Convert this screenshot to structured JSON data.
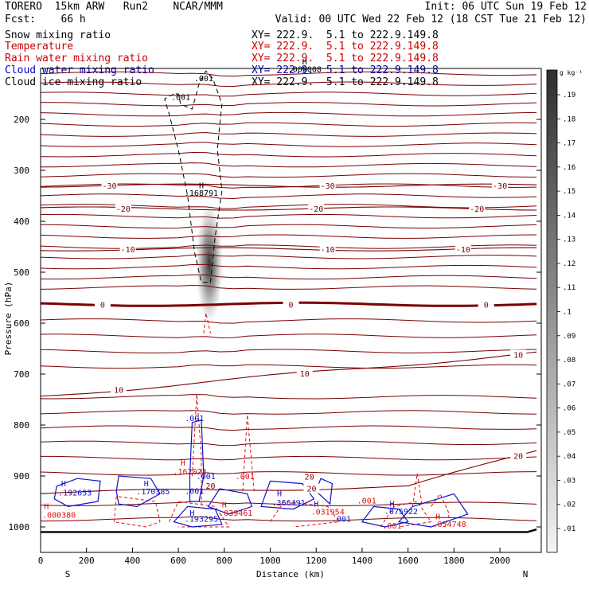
{
  "header": {
    "line1_left": "TORERO  15km ARW   Run2    NCAR/MMM",
    "line1_right": "Init: 06 UTC Sun 19 Feb 12",
    "line2_left": "Fcst:    66 h",
    "line2_right": "Valid: 00 UTC Wed 22 Feb 12 (18 CST Tue 21 Feb 12)",
    "fields": [
      {
        "name": "Snow mixing ratio",
        "xy": "XY= 222.9.  5.1 to 222.9.149.8",
        "color": "#000000"
      },
      {
        "name": "Temperature",
        "xy": "XY= 222.9.  5.1 to 222.9.149.8",
        "color": "#cc0000"
      },
      {
        "name": "Rain water mixing ratio",
        "xy": "XY= 222.9.  5.1 to 222.9.149.8",
        "color": "#cc0000"
      },
      {
        "name": "Cloud water mixing ratio",
        "xy": "XY= 222.9.  5.1 to 222.9.149.8",
        "color": "#0000cc"
      },
      {
        "name": "Cloud ice mixing ratio",
        "xy": "XY= 222.9.  5.1 to 222.9.149.8",
        "color": "#000000"
      }
    ]
  },
  "colors": {
    "temperature": "#7a0000",
    "rain": "#dd1111",
    "cloud_water": "#1111cc",
    "cloud_ice": "#000000",
    "freezing": "#7a0000"
  },
  "chart_data": {
    "type": "cross-section",
    "xlabel": "Distance (km)",
    "ylabel": "Pressure (hPa)",
    "xlim": [
      0,
      2180
    ],
    "ylim": [
      1050,
      100
    ],
    "x_ticks": [
      0,
      200,
      400,
      600,
      800,
      1000,
      1200,
      1400,
      1600,
      1800,
      2000
    ],
    "y_ticks": [
      200,
      300,
      400,
      500,
      600,
      700,
      800,
      900,
      1000
    ],
    "left_end_label": "S",
    "right_end_label": "N",
    "colorbar": {
      "unit": "g kg⁻¹",
      "ticks": [
        ".01",
        ".02",
        ".03",
        ".04",
        ".05",
        ".06",
        ".07",
        ".08",
        ".09",
        ".1",
        ".11",
        ".12",
        ".13",
        ".14",
        ".15",
        ".16",
        ".17",
        ".18",
        ".19"
      ]
    },
    "temperature_contours": [
      {
        "label": "-30",
        "p": 330,
        "label_x": [
          300,
          1250,
          2000
        ]
      },
      {
        "label": "-20",
        "p": 375,
        "label_x": [
          360,
          1200,
          1900
        ]
      },
      {
        "label": "-10",
        "p": 455,
        "label_x": [
          380,
          1250,
          1840
        ]
      },
      {
        "label": "0",
        "p": 563,
        "label_x": [
          270,
          1090,
          1940
        ]
      },
      {
        "label": "10",
        "p": 716,
        "label_x": [
          340,
          1150,
          2080
        ]
      },
      {
        "label": "20",
        "p": 925,
        "label_x": [
          1180,
          2080
        ]
      }
    ],
    "snow_peak": {
      "x": 735,
      "p": 470
    },
    "annotations": [
      {
        "text": "H",
        "x": 700,
        "p": 335,
        "color": "#000000"
      },
      {
        "text": ".168791",
        "x": 700,
        "p": 350,
        "color": "#000000"
      },
      {
        "text": "H",
        "x": 1150,
        "p": 92,
        "color": "#000000"
      },
      {
        "text": ".000008",
        "x": 1150,
        "p": 107,
        "color": "#000000"
      },
      {
        "text": ".001",
        "x": 710,
        "p": 125,
        "color": "#000000"
      },
      {
        "text": ".001",
        "x": 610,
        "p": 162,
        "color": "#000000"
      },
      {
        "text": ".001",
        "x": 670,
        "p": 792,
        "color": "#1111cc"
      },
      {
        "text": "H",
        "x": 620,
        "p": 880,
        "color": "#dd1111"
      },
      {
        "text": ".162023",
        "x": 650,
        "p": 897,
        "color": "#dd1111"
      },
      {
        "text": ".001",
        "x": 720,
        "p": 906,
        "color": "#1111cc"
      },
      {
        "text": ".001",
        "x": 890,
        "p": 906,
        "color": "#dd1111"
      },
      {
        "text": "20",
        "x": 1170,
        "p": 907,
        "color": "#7a0000"
      },
      {
        "text": "H",
        "x": 100,
        "p": 920,
        "color": "#1111cc"
      },
      {
        "text": ".192653",
        "x": 150,
        "p": 938,
        "color": "#1111cc"
      },
      {
        "text": "H",
        "x": 460,
        "p": 920,
        "color": "#1111cc"
      },
      {
        "text": ".170385",
        "x": 490,
        "p": 936,
        "color": "#1111cc"
      },
      {
        "text": ".001",
        "x": 670,
        "p": 935,
        "color": "#1111cc"
      },
      {
        "text": "20",
        "x": 740,
        "p": 925,
        "color": "#7a0000"
      },
      {
        "text": "H",
        "x": 25,
        "p": 965,
        "color": "#dd1111"
      },
      {
        "text": ".000380",
        "x": 80,
        "p": 982,
        "color": "#dd1111"
      },
      {
        "text": "H",
        "x": 1040,
        "p": 940,
        "color": "#1111cc"
      },
      {
        "text": ".366491",
        "x": 1080,
        "p": 958,
        "color": "#1111cc"
      },
      {
        "text": "H",
        "x": 1200,
        "p": 960,
        "color": "#1111cc"
      },
      {
        "text": ".031954",
        "x": 1250,
        "p": 976,
        "color": "#dd1111"
      },
      {
        "text": ".001",
        "x": 1420,
        "p": 954,
        "color": "#dd1111"
      },
      {
        "text": "H",
        "x": 1530,
        "p": 960,
        "color": "#1111cc"
      },
      {
        "text": ".075922",
        "x": 1570,
        "p": 975,
        "color": "#1111cc"
      },
      {
        "text": ".001",
        "x": 1310,
        "p": 990,
        "color": "#1111cc"
      },
      {
        "text": "H",
        "x": 800,
        "p": 962,
        "color": "#dd1111"
      },
      {
        "text": ".039461",
        "x": 850,
        "p": 978,
        "color": "#dd1111"
      },
      {
        "text": "H",
        "x": 660,
        "p": 978,
        "color": "#1111cc"
      },
      {
        "text": ".193295",
        "x": 700,
        "p": 990,
        "color": "#1111cc"
      },
      {
        "text": ".001",
        "x": 1530,
        "p": 1003,
        "color": "#dd1111"
      },
      {
        "text": "H",
        "x": 1730,
        "p": 985,
        "color": "#dd1111"
      },
      {
        "text": ".054748",
        "x": 1780,
        "p": 1000,
        "color": "#dd1111"
      }
    ]
  }
}
